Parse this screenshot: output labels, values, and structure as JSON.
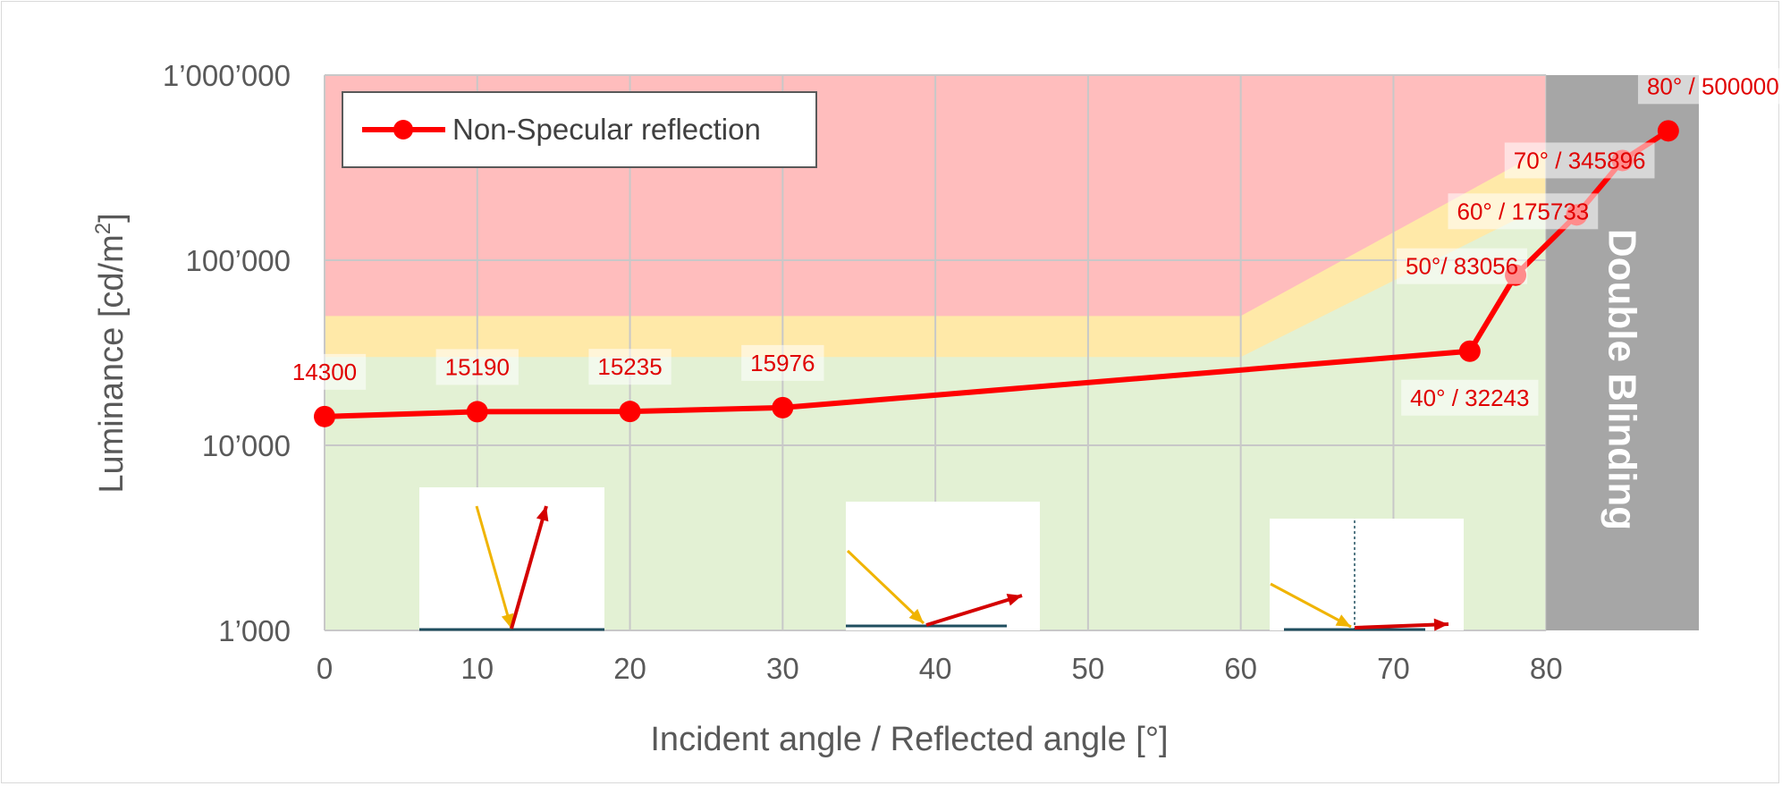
{
  "chart_data": {
    "type": "line",
    "xlabel": "Incident angle / Reflected angle [°]",
    "ylabel": "Luminance [cd/m²]",
    "ylabel_main": "Luminance [cd/m",
    "ylabel_sup": "2",
    "ylabel_end": "]",
    "xlim": [
      0,
      90
    ],
    "ylim": [
      1000,
      1000000
    ],
    "yscale": "log",
    "x_ticks": [
      0,
      10,
      20,
      30,
      40,
      50,
      60,
      70,
      80
    ],
    "x_tick_labels": [
      "0",
      "10",
      "20",
      "30",
      "40",
      "50",
      "60",
      "70",
      "80"
    ],
    "y_ticks": [
      1000,
      10000,
      100000,
      1000000
    ],
    "y_tick_labels": [
      "1’000",
      "10’000",
      "100’000",
      "1’000’000"
    ],
    "grid": true,
    "legend": {
      "placement": "top-left",
      "entries": [
        "Non-Specular reflection"
      ]
    },
    "series": [
      {
        "name": "Non-Specular reflection",
        "color": "#ff0000",
        "x": [
          0,
          10,
          20,
          30,
          75,
          78,
          82,
          85,
          88
        ],
        "y": [
          14300,
          15190,
          15235,
          15976,
          32243,
          83056,
          175733,
          345896,
          500000
        ]
      }
    ],
    "data_labels": [
      {
        "text": "14300",
        "x": 0,
        "y": 14300
      },
      {
        "text": "15190",
        "x": 10,
        "y": 15190
      },
      {
        "text": "15235",
        "x": 20,
        "y": 15235
      },
      {
        "text": "15976",
        "x": 30,
        "y": 15976
      },
      {
        "text": "40° / 32243",
        "x": 75,
        "y": 32243
      },
      {
        "text": "50°/ 83056",
        "x": 78,
        "y": 83056
      },
      {
        "text": "60° / 175733",
        "x": 82,
        "y": 175733
      },
      {
        "text": "70° / 345896",
        "x": 85,
        "y": 345896
      },
      {
        "text": "80° / 500000",
        "x": 88,
        "y": 500000
      }
    ],
    "zones": {
      "red": {
        "color": "#ffbdbd",
        "from": 0,
        "to": 80
      },
      "yellow": {
        "color": "#ffe9a8",
        "points_x": [
          0,
          60,
          80
        ],
        "points_y": [
          50000,
          50000,
          400000
        ]
      },
      "green": {
        "color": "#e3f1d4",
        "points_x": [
          0,
          60,
          80
        ],
        "points_y": [
          30000,
          30000,
          200000
        ]
      },
      "gray_band": {
        "color": "#a6a6a6",
        "from": 80,
        "to": 90,
        "label": "Double Blinding"
      }
    },
    "insets": [
      {
        "name": "reflection-diagram-steep",
        "x_center": 16
      },
      {
        "name": "reflection-diagram-medium",
        "x_center": 41
      },
      {
        "name": "reflection-diagram-grazing",
        "x_center": 68.5
      }
    ]
  }
}
